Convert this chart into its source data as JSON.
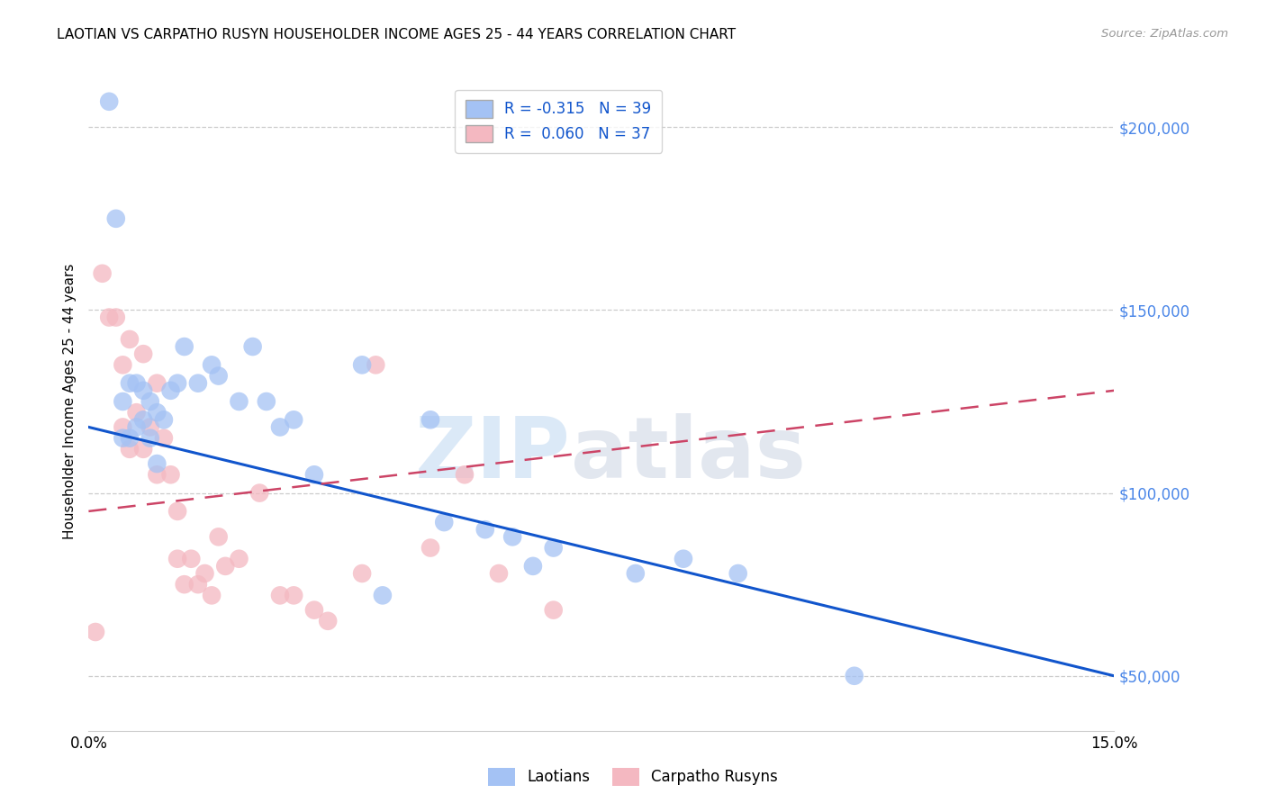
{
  "title": "LAOTIAN VS CARPATHO RUSYN HOUSEHOLDER INCOME AGES 25 - 44 YEARS CORRELATION CHART",
  "source": "Source: ZipAtlas.com",
  "ylabel": "Householder Income Ages 25 - 44 years",
  "xlim": [
    0.0,
    0.15
  ],
  "ylim": [
    35000,
    215000
  ],
  "blue_color": "#a4c2f4",
  "pink_color": "#f4b8c1",
  "blue_line_color": "#1155cc",
  "pink_line_color": "#cc4466",
  "legend_R_blue": "R = -0.315",
  "legend_N_blue": "N = 39",
  "legend_R_pink": "R =  0.060",
  "legend_N_pink": "N = 37",
  "watermark_zip": "ZIP",
  "watermark_atlas": "atlas",
  "laotian_x": [
    0.003,
    0.004,
    0.005,
    0.005,
    0.006,
    0.006,
    0.007,
    0.007,
    0.008,
    0.008,
    0.009,
    0.009,
    0.01,
    0.01,
    0.011,
    0.012,
    0.013,
    0.014,
    0.016,
    0.018,
    0.019,
    0.022,
    0.024,
    0.026,
    0.028,
    0.03,
    0.033,
    0.04,
    0.043,
    0.05,
    0.052,
    0.058,
    0.062,
    0.065,
    0.068,
    0.08,
    0.087,
    0.095,
    0.112
  ],
  "laotian_y": [
    207000,
    175000,
    125000,
    115000,
    130000,
    115000,
    130000,
    118000,
    128000,
    120000,
    125000,
    115000,
    122000,
    108000,
    120000,
    128000,
    130000,
    140000,
    130000,
    135000,
    132000,
    125000,
    140000,
    125000,
    118000,
    120000,
    105000,
    135000,
    72000,
    120000,
    92000,
    90000,
    88000,
    80000,
    85000,
    78000,
    82000,
    78000,
    50000
  ],
  "rusyn_x": [
    0.001,
    0.002,
    0.003,
    0.004,
    0.005,
    0.005,
    0.006,
    0.006,
    0.007,
    0.008,
    0.008,
    0.009,
    0.01,
    0.01,
    0.011,
    0.012,
    0.013,
    0.013,
    0.014,
    0.015,
    0.016,
    0.017,
    0.018,
    0.019,
    0.02,
    0.022,
    0.025,
    0.028,
    0.03,
    0.033,
    0.035,
    0.04,
    0.042,
    0.05,
    0.055,
    0.06,
    0.068
  ],
  "rusyn_y": [
    62000,
    160000,
    148000,
    148000,
    135000,
    118000,
    142000,
    112000,
    122000,
    138000,
    112000,
    118000,
    130000,
    105000,
    115000,
    105000,
    95000,
    82000,
    75000,
    82000,
    75000,
    78000,
    72000,
    88000,
    80000,
    82000,
    100000,
    72000,
    72000,
    68000,
    65000,
    78000,
    135000,
    85000,
    105000,
    78000,
    68000
  ],
  "blue_line_x0": 0.0,
  "blue_line_y0": 118000,
  "blue_line_x1": 0.15,
  "blue_line_y1": 50000,
  "pink_line_x0": 0.0,
  "pink_line_y0": 95000,
  "pink_line_x1": 0.15,
  "pink_line_y1": 128000
}
